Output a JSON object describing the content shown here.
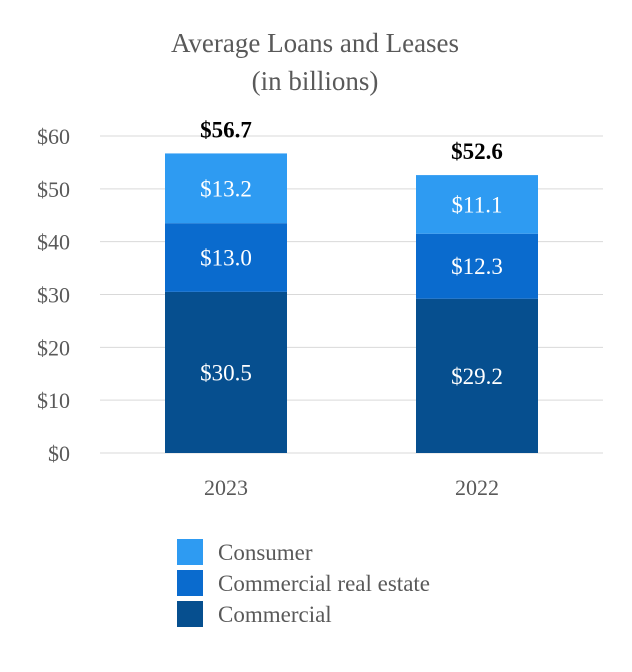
{
  "chart_data": {
    "type": "bar",
    "stacked": true,
    "title": "Average Loans and Leases",
    "subtitle": "(in billions)",
    "categories": [
      "2023",
      "2022"
    ],
    "series": [
      {
        "name": "Commercial",
        "values": [
          30.5,
          29.2
        ],
        "labels": [
          "$30.5",
          "$29.2"
        ],
        "color": "#064f8f"
      },
      {
        "name": "Commercial real estate",
        "values": [
          13.0,
          12.3
        ],
        "labels": [
          "$13.0",
          "$12.3"
        ],
        "color": "#0a6bce"
      },
      {
        "name": "Consumer",
        "values": [
          13.2,
          11.1
        ],
        "labels": [
          "$13.2",
          "$11.1"
        ],
        "color": "#2e9bf2"
      }
    ],
    "totals": [
      56.7,
      52.6
    ],
    "total_labels": [
      "$56.7",
      "$52.6"
    ],
    "ylim": [
      0,
      60
    ],
    "yticks": [
      0,
      10,
      20,
      30,
      40,
      50,
      60
    ],
    "ytick_labels": [
      "$0",
      "$10",
      "$20",
      "$30",
      "$40",
      "$50",
      "$60"
    ],
    "xlabel": "",
    "ylabel": "",
    "grid": true,
    "legend_order": [
      "Consumer",
      "Commercial real estate",
      "Commercial"
    ],
    "legend_position": "bottom"
  }
}
